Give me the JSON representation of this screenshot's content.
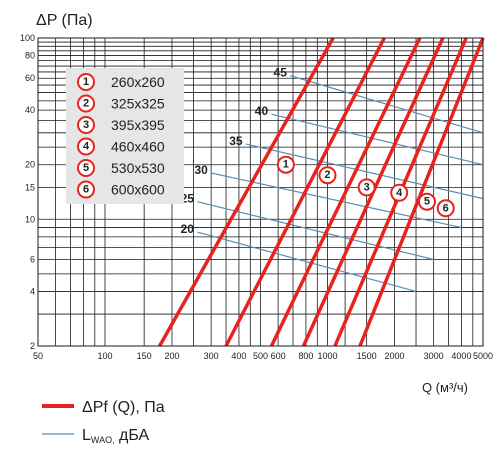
{
  "chart_data": {
    "type": "line",
    "ylabel": "ΔP (Па)",
    "xlabel": "Q (м³/ч)",
    "x_scale": "log",
    "y_scale": "log",
    "xlim": [
      50,
      5000
    ],
    "ylim": [
      2,
      100
    ],
    "x_ticks": [
      50,
      100,
      150,
      200,
      300,
      400,
      500,
      600,
      800,
      1000,
      1500,
      2000,
      3000,
      4000,
      5000
    ],
    "y_ticks": [
      2,
      4,
      6,
      10,
      15,
      20,
      40,
      60,
      80,
      100
    ],
    "grid": true,
    "legend_sizes": [
      {
        "id": "1",
        "label": "260x260"
      },
      {
        "id": "2",
        "label": "325x325"
      },
      {
        "id": "3",
        "label": "395x395"
      },
      {
        "id": "4",
        "label": "460x460"
      },
      {
        "id": "5",
        "label": "530x530"
      },
      {
        "id": "6",
        "label": "600x600"
      }
    ],
    "pressure_series": [
      {
        "id": "1",
        "color": "#e8231e",
        "x": [
          176,
          1060
        ],
        "y": [
          2,
          100
        ],
        "marker_at": {
          "x": 650,
          "y": 20
        }
      },
      {
        "id": "2",
        "color": "#e8231e",
        "x": [
          350,
          1800
        ],
        "y": [
          2,
          100
        ],
        "marker_at": {
          "x": 1000,
          "y": 17.5
        }
      },
      {
        "id": "3",
        "color": "#e8231e",
        "x": [
          560,
          2600
        ],
        "y": [
          2,
          100
        ],
        "marker_at": {
          "x": 1500,
          "y": 15
        }
      },
      {
        "id": "4",
        "color": "#e8231e",
        "x": [
          780,
          3300
        ],
        "y": [
          2,
          100
        ],
        "marker_at": {
          "x": 2100,
          "y": 14
        }
      },
      {
        "id": "5",
        "color": "#e8231e",
        "x": [
          1080,
          4200
        ],
        "y": [
          2,
          100
        ],
        "marker_at": {
          "x": 2800,
          "y": 12.5
        }
      },
      {
        "id": "6",
        "color": "#e8231e",
        "x": [
          1400,
          5000
        ],
        "y": [
          2,
          100
        ],
        "marker_at": {
          "x": 3400,
          "y": 11.5
        }
      }
    ],
    "noise_series": [
      {
        "label": "20",
        "x": [
          260,
          2500
        ],
        "y": [
          8.5,
          4
        ]
      },
      {
        "label": "25",
        "x": [
          260,
          3000
        ],
        "y": [
          12.5,
          6
        ]
      },
      {
        "label": "30",
        "x": [
          300,
          4000
        ],
        "y": [
          18,
          9
        ]
      },
      {
        "label": "35",
        "x": [
          430,
          5000
        ],
        "y": [
          26,
          13
        ]
      },
      {
        "label": "40",
        "x": [
          560,
          5000
        ],
        "y": [
          38,
          20
        ]
      },
      {
        "label": "45",
        "x": [
          680,
          5000
        ],
        "y": [
          62,
          30
        ]
      }
    ],
    "noise_color": "#5a8fb5"
  },
  "legend": {
    "pressure_label": "ΔPf (Q), Па",
    "noise_label_main": "L",
    "noise_label_sub": "WAO,",
    "noise_label_unit": " дБА"
  }
}
